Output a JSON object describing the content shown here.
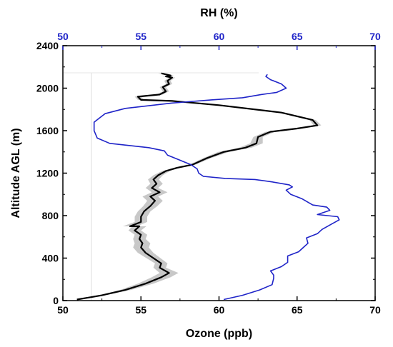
{
  "chart_data": {
    "type": "line",
    "colors": {
      "ozone": "#000000",
      "ozone_band": "#c8c8c8",
      "rh": "#1f24c8",
      "top_axis": "#1f24c8",
      "bottom_axis": "#000000"
    },
    "axes": {
      "x_bottom": {
        "label": "Ozone (ppb)",
        "range": [
          50,
          70
        ],
        "ticks": [
          50,
          55,
          60,
          65,
          70
        ],
        "tick_labels": [
          "50",
          "55",
          "60",
          "65",
          "70"
        ]
      },
      "x_top": {
        "label": "RH (%)",
        "range": [
          50,
          70
        ],
        "ticks": [
          50,
          55,
          60,
          65,
          70
        ],
        "tick_labels": [
          "50",
          "55",
          "60",
          "65",
          "70"
        ]
      },
      "y": {
        "label": "Altitude AGL (m)",
        "range": [
          0,
          2400
        ],
        "ticks": [
          0,
          400,
          800,
          1200,
          1600,
          2000,
          2400
        ],
        "tick_labels": [
          "0",
          "400",
          "800",
          "1200",
          "1600",
          "2000",
          "2400"
        ]
      }
    },
    "series": [
      {
        "axis": "bottom",
        "band": [
          0.1,
          0.2,
          0.35,
          0.5,
          0.6,
          0.6,
          0.4,
          0.4,
          0.45,
          0.5,
          0.5,
          0.5,
          0.4,
          0.4,
          0.4,
          0.45,
          0.45,
          0.4,
          0.4,
          0.4,
          0.45,
          0.5,
          0.5,
          0.5,
          0.4,
          0.4,
          0.35,
          0.3,
          0.25,
          0.2,
          0.2,
          0.25,
          0.35,
          0.4,
          0.4,
          0.3,
          0.3,
          0.25,
          0.25,
          0.2,
          0.2,
          0.2,
          0.2,
          0.2,
          0.2,
          0.2,
          0.2,
          0.2,
          0.2,
          0.2,
          0.2,
          0.2,
          0.2,
          0.2,
          0.2
        ],
        "points": [
          [
            50.9,
            10
          ],
          [
            52.5,
            50
          ],
          [
            54.0,
            100
          ],
          [
            55.3,
            160
          ],
          [
            56.3,
            220
          ],
          [
            56.8,
            260
          ],
          [
            56.2,
            310
          ],
          [
            56.3,
            350
          ],
          [
            55.8,
            400
          ],
          [
            55.3,
            450
          ],
          [
            55.0,
            500
          ],
          [
            55.1,
            540
          ],
          [
            54.9,
            580
          ],
          [
            55.0,
            620
          ],
          [
            54.6,
            660
          ],
          [
            54.9,
            700
          ],
          [
            54.3,
            700
          ],
          [
            55.0,
            740
          ],
          [
            55.0,
            790
          ],
          [
            55.2,
            840
          ],
          [
            55.6,
            890
          ],
          [
            55.9,
            940
          ],
          [
            55.6,
            980
          ],
          [
            56.2,
            1020
          ],
          [
            55.7,
            1060
          ],
          [
            56.0,
            1100
          ],
          [
            55.8,
            1140
          ],
          [
            56.1,
            1180
          ],
          [
            56.6,
            1220
          ],
          [
            57.3,
            1250
          ],
          [
            58.3,
            1280
          ],
          [
            59.2,
            1340
          ],
          [
            60.3,
            1400
          ],
          [
            61.7,
            1440
          ],
          [
            62.4,
            1480
          ],
          [
            62.5,
            1540
          ],
          [
            63.3,
            1590
          ],
          [
            65.0,
            1620
          ],
          [
            66.3,
            1650
          ],
          [
            66.0,
            1700
          ],
          [
            64.0,
            1770
          ],
          [
            60.0,
            1840
          ],
          [
            57.0,
            1880
          ],
          [
            55.0,
            1890
          ],
          [
            54.8,
            1920
          ],
          [
            55.5,
            1930
          ],
          [
            56.2,
            1940
          ],
          [
            56.6,
            1970
          ],
          [
            56.4,
            2010
          ],
          [
            56.8,
            2040
          ],
          [
            56.7,
            2070
          ],
          [
            57.0,
            2100
          ],
          [
            56.6,
            2110
          ],
          [
            56.9,
            2120
          ],
          [
            56.3,
            2140
          ]
        ]
      },
      {
        "axis": "top",
        "points": [
          [
            60.3,
            10
          ],
          [
            61.5,
            50
          ],
          [
            62.6,
            100
          ],
          [
            63.4,
            150
          ],
          [
            63.5,
            210
          ],
          [
            63.5,
            240
          ],
          [
            63.3,
            280
          ],
          [
            64.0,
            320
          ],
          [
            64.4,
            360
          ],
          [
            64.4,
            420
          ],
          [
            65.1,
            460
          ],
          [
            65.4,
            500
          ],
          [
            65.7,
            540
          ],
          [
            65.6,
            590
          ],
          [
            66.3,
            630
          ],
          [
            66.6,
            670
          ],
          [
            67.2,
            720
          ],
          [
            67.7,
            760
          ],
          [
            67.6,
            790
          ],
          [
            66.3,
            810
          ],
          [
            67.1,
            850
          ],
          [
            66.9,
            880
          ],
          [
            66.0,
            900
          ],
          [
            65.3,
            960
          ],
          [
            64.6,
            1000
          ],
          [
            64.3,
            1040
          ],
          [
            64.7,
            1070
          ],
          [
            64.5,
            1090
          ],
          [
            63.3,
            1120
          ],
          [
            62.3,
            1140
          ],
          [
            60.4,
            1150
          ],
          [
            59.0,
            1170
          ],
          [
            58.7,
            1200
          ],
          [
            58.6,
            1240
          ],
          [
            58.2,
            1280
          ],
          [
            56.7,
            1370
          ],
          [
            56.5,
            1410
          ],
          [
            55.5,
            1440
          ],
          [
            53.0,
            1480
          ],
          [
            52.2,
            1530
          ],
          [
            52.0,
            1600
          ],
          [
            52.0,
            1680
          ],
          [
            52.7,
            1760
          ],
          [
            54.0,
            1810
          ],
          [
            57.0,
            1860
          ],
          [
            59.5,
            1890
          ],
          [
            61.5,
            1910
          ],
          [
            62.7,
            1940
          ],
          [
            63.7,
            1960
          ],
          [
            64.3,
            2000
          ],
          [
            64.0,
            2040
          ],
          [
            63.3,
            2080
          ],
          [
            63.0,
            2110
          ],
          [
            63.1,
            2130
          ]
        ]
      }
    ]
  }
}
